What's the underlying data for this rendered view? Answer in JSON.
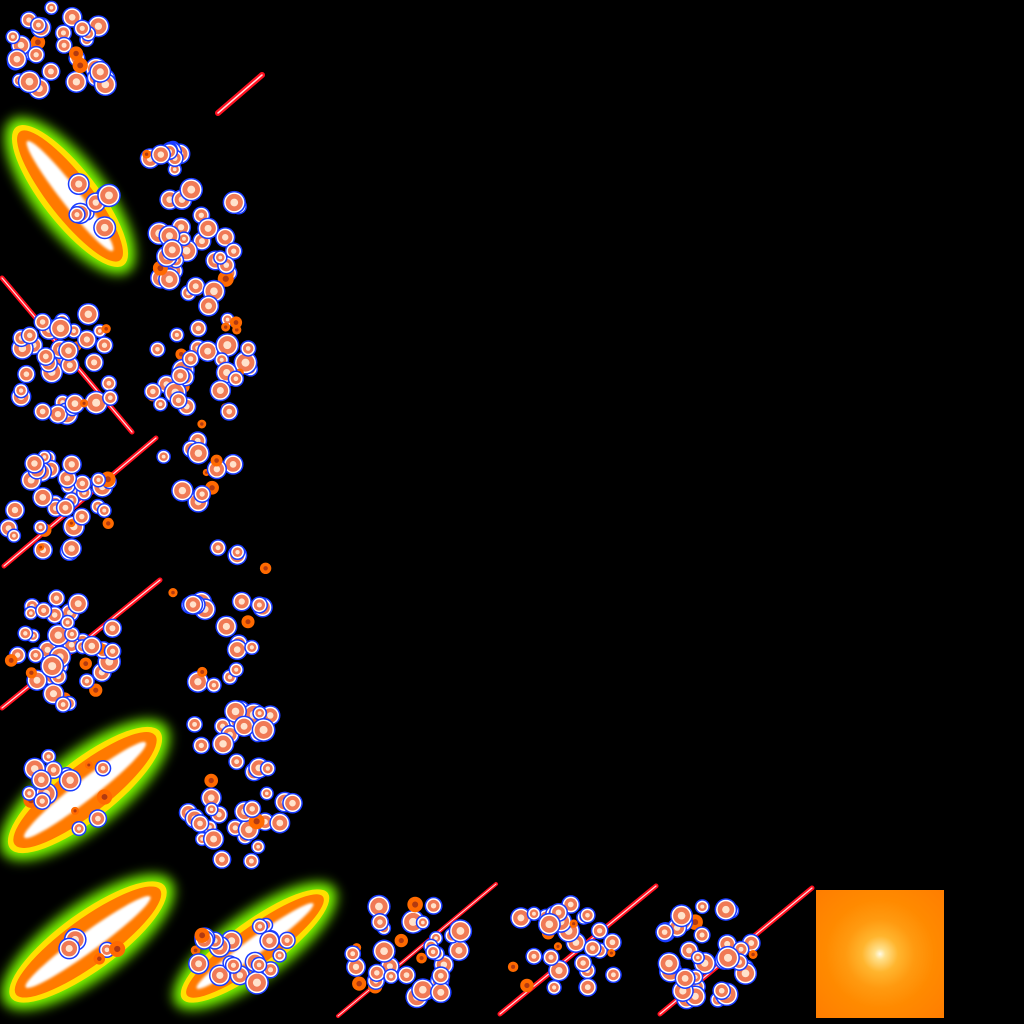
{
  "sheet": {
    "background": "#000000",
    "colors": {
      "spark_core": "#ffe3cc",
      "spark_mid": "#f07a55",
      "spark_outer": "#1a3cff",
      "spark_hot": "#ff6a00",
      "slash_red": "#ff1020",
      "slash_glow_green": "#7dff00",
      "slash_glow_yellow": "#ffe000",
      "slash_fill_orange": "#ff7a00",
      "flare_center": "#fffbe8",
      "flare_edge": "#ff7d00"
    },
    "sprites": [
      {
        "name": "spark-cluster",
        "seed": 11
      },
      {
        "name": "red-streak",
        "kind": "thin"
      },
      {
        "name": "green-glow-slash",
        "kind": "glow"
      },
      {
        "name": "spark-cluster",
        "seed": 23
      },
      {
        "name": "spark-cluster",
        "seed": 37
      },
      {
        "name": "red-slash-spark-cluster",
        "seed": 41
      },
      {
        "name": "spark-cluster",
        "seed": 53
      },
      {
        "name": "red-slash-spark-cluster",
        "seed": 67
      },
      {
        "name": "spark-cluster",
        "seed": 71
      },
      {
        "name": "red-slash-spark-cluster",
        "seed": 83
      },
      {
        "name": "spark-cluster",
        "seed": 97
      },
      {
        "name": "green-glow-slash-sparks",
        "seed": 101
      },
      {
        "name": "spark-cluster",
        "seed": 113
      },
      {
        "name": "green-glow-slash",
        "kind": "glow"
      },
      {
        "name": "green-glow-slash-sparks",
        "seed": 127
      },
      {
        "name": "red-slash-spark-cluster",
        "seed": 131
      },
      {
        "name": "red-slash-spark-cluster",
        "seed": 149
      },
      {
        "name": "red-slash-spark-cluster",
        "seed": 157
      },
      {
        "name": "orange-flare",
        "kind": "flare"
      }
    ]
  }
}
